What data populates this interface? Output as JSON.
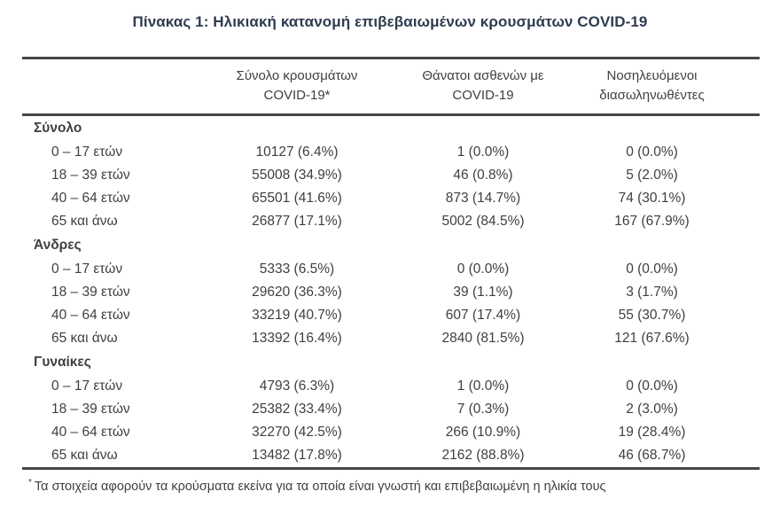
{
  "title": "Πίνακας 1: Ηλικιακή κατανομή επιβεβαιωμένων κρουσμάτων COVID-19",
  "colors": {
    "title_text": "#2e3c50",
    "body_text": "#3d4043",
    "rule": "#474747",
    "background": "#ffffff"
  },
  "table": {
    "columns": [
      {
        "line1": "Σύνολο κρουσμάτων",
        "line2": "COVID-19*"
      },
      {
        "line1": "Θάνατοι ασθενών με",
        "line2": "COVID-19"
      },
      {
        "line1": "Νοσηλευόμενοι",
        "line2": "διασωληνωθέντες"
      }
    ],
    "sections": [
      {
        "label": "Σύνολο",
        "rows": [
          {
            "age": "0 – 17 ετών",
            "cases": "10127 (6.4%)",
            "deaths": "1 (0.0%)",
            "intubated": "0 (0.0%)"
          },
          {
            "age": "18 – 39 ετών",
            "cases": "55008 (34.9%)",
            "deaths": "46 (0.8%)",
            "intubated": "5 (2.0%)"
          },
          {
            "age": "40 – 64 ετών",
            "cases": "65501 (41.6%)",
            "deaths": "873 (14.7%)",
            "intubated": "74 (30.1%)"
          },
          {
            "age": "65 και άνω",
            "cases": "26877 (17.1%)",
            "deaths": "5002 (84.5%)",
            "intubated": "167 (67.9%)"
          }
        ]
      },
      {
        "label": "Άνδρες",
        "rows": [
          {
            "age": "0 – 17 ετών",
            "cases": "5333 (6.5%)",
            "deaths": "0 (0.0%)",
            "intubated": "0 (0.0%)"
          },
          {
            "age": "18 – 39 ετών",
            "cases": "29620 (36.3%)",
            "deaths": "39 (1.1%)",
            "intubated": "3 (1.7%)"
          },
          {
            "age": "40 – 64 ετών",
            "cases": "33219 (40.7%)",
            "deaths": "607 (17.4%)",
            "intubated": "55 (30.7%)"
          },
          {
            "age": "65 και άνω",
            "cases": "13392 (16.4%)",
            "deaths": "2840 (81.5%)",
            "intubated": "121 (67.6%)"
          }
        ]
      },
      {
        "label": "Γυναίκες",
        "rows": [
          {
            "age": "0 – 17 ετών",
            "cases": "4793 (6.3%)",
            "deaths": "1 (0.0%)",
            "intubated": "0 (0.0%)"
          },
          {
            "age": "18 – 39 ετών",
            "cases": "25382 (33.4%)",
            "deaths": "7 (0.3%)",
            "intubated": "2 (3.0%)"
          },
          {
            "age": "40 – 64 ετών",
            "cases": "32270 (42.5%)",
            "deaths": "266 (10.9%)",
            "intubated": "19 (28.4%)"
          },
          {
            "age": "65 και άνω",
            "cases": "13482 (17.8%)",
            "deaths": "2162 (88.8%)",
            "intubated": "46 (68.7%)"
          }
        ]
      }
    ]
  },
  "footnote": {
    "marker": "*",
    "text": "Τα στοιχεία αφορούν τα κρούσματα εκείνα για τα οποία είναι γνωστή και επιβεβαιωμένη η ηλικία τους"
  }
}
